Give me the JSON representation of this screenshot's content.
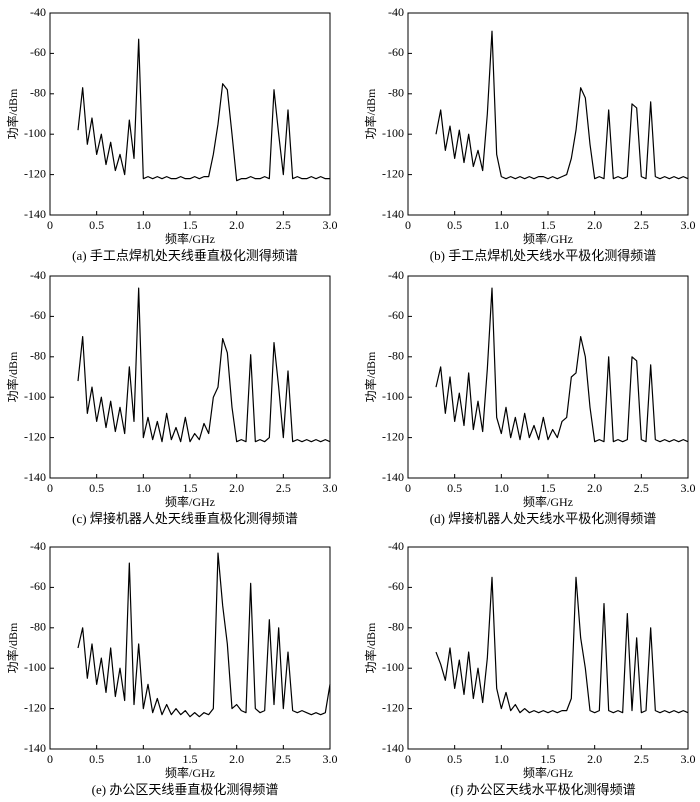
{
  "chart_data": [
    {
      "type": "line",
      "title": "(a) 手工点焊机处天线垂直极化测得频谱",
      "x_label": "频率/GHz",
      "y_label": "功率/dBm",
      "color": "#000000",
      "x": [
        0.3,
        0.35,
        0.4,
        0.45,
        0.5,
        0.55,
        0.6,
        0.65,
        0.7,
        0.75,
        0.8,
        0.85,
        0.9,
        0.95,
        1.0,
        1.05,
        1.1,
        1.15,
        1.2,
        1.25,
        1.3,
        1.35,
        1.4,
        1.45,
        1.5,
        1.55,
        1.6,
        1.65,
        1.7,
        1.75,
        1.8,
        1.85,
        1.9,
        1.95,
        2.0,
        2.05,
        2.1,
        2.15,
        2.2,
        2.25,
        2.3,
        2.35,
        2.4,
        2.45,
        2.5,
        2.55,
        2.6,
        2.65,
        2.7,
        2.75,
        2.8,
        2.85,
        2.9,
        2.95,
        3.0
      ],
      "values": [
        -98,
        -77,
        -105,
        -92,
        -110,
        -100,
        -115,
        -104,
        -118,
        -110,
        -120,
        -93,
        -112,
        -53,
        -122,
        -121,
        -122,
        -121,
        -122,
        -121,
        -122,
        -122,
        -121,
        -122,
        -122,
        -121,
        -122,
        -121,
        -121,
        -110,
        -95,
        -75,
        -78,
        -100,
        -123,
        -122,
        -122,
        -121,
        -122,
        -122,
        -121,
        -122,
        -78,
        -100,
        -120,
        -88,
        -122,
        -121,
        -122,
        -122,
        -121,
        -122,
        -121,
        -122,
        -122
      ],
      "xlim": [
        0,
        3
      ],
      "ylim": [
        -140,
        -40
      ],
      "xticks": [
        0,
        0.5,
        {
          "value": 1,
          "label": "1.0"
        },
        1.5,
        {
          "value": 2,
          "label": "2.0"
        },
        2.5,
        {
          "value": 3,
          "label": "3.0"
        }
      ],
      "yticks": [
        -40,
        -60,
        -80,
        -100,
        -120,
        -140
      ]
    },
    {
      "type": "line",
      "title": "(b) 手工点焊机处天线水平极化测得频谱",
      "x_label": "频率/GHz",
      "y_label": "功率/dBm",
      "color": "#000000",
      "x": [
        0.3,
        0.35,
        0.4,
        0.45,
        0.5,
        0.55,
        0.6,
        0.65,
        0.7,
        0.75,
        0.8,
        0.85,
        0.9,
        0.95,
        1.0,
        1.05,
        1.1,
        1.15,
        1.2,
        1.25,
        1.3,
        1.35,
        1.4,
        1.45,
        1.5,
        1.55,
        1.6,
        1.65,
        1.7,
        1.75,
        1.8,
        1.85,
        1.9,
        1.95,
        2.0,
        2.05,
        2.1,
        2.15,
        2.2,
        2.25,
        2.3,
        2.35,
        2.4,
        2.45,
        2.5,
        2.55,
        2.6,
        2.65,
        2.7,
        2.75,
        2.8,
        2.85,
        2.9,
        2.95,
        3.0
      ],
      "values": [
        -100,
        -88,
        -108,
        -96,
        -112,
        -98,
        -114,
        -100,
        -116,
        -108,
        -118,
        -90,
        -49,
        -110,
        -121,
        -122,
        -121,
        -122,
        -121,
        -122,
        -121,
        -122,
        -121,
        -121,
        -122,
        -121,
        -122,
        -121,
        -120,
        -112,
        -98,
        -77,
        -82,
        -105,
        -122,
        -121,
        -122,
        -88,
        -122,
        -121,
        -122,
        -121,
        -85,
        -87,
        -121,
        -122,
        -84,
        -121,
        -122,
        -121,
        -122,
        -121,
        -122,
        -121,
        -122
      ],
      "xlim": [
        0,
        3
      ],
      "ylim": [
        -140,
        -40
      ],
      "xticks": [
        0,
        0.5,
        {
          "value": 1,
          "label": "1.0"
        },
        1.5,
        {
          "value": 2,
          "label": "2.0"
        },
        2.5,
        {
          "value": 3,
          "label": "3.0"
        }
      ],
      "yticks": [
        -40,
        -60,
        -80,
        -100,
        -120,
        -140
      ]
    },
    {
      "type": "line",
      "title": "(c) 焊接机器人处天线垂直极化测得频谱",
      "x_label": "频率/GHz",
      "y_label": "功率/dBm",
      "color": "#000000",
      "x": [
        0.3,
        0.35,
        0.4,
        0.45,
        0.5,
        0.55,
        0.6,
        0.65,
        0.7,
        0.75,
        0.8,
        0.85,
        0.9,
        0.95,
        1.0,
        1.05,
        1.1,
        1.15,
        1.2,
        1.25,
        1.3,
        1.35,
        1.4,
        1.45,
        1.5,
        1.55,
        1.6,
        1.65,
        1.7,
        1.75,
        1.8,
        1.85,
        1.9,
        1.95,
        2.0,
        2.05,
        2.1,
        2.15,
        2.2,
        2.25,
        2.3,
        2.35,
        2.4,
        2.45,
        2.5,
        2.55,
        2.6,
        2.65,
        2.7,
        2.75,
        2.8,
        2.85,
        2.9,
        2.95,
        3.0
      ],
      "values": [
        -92,
        -70,
        -108,
        -95,
        -112,
        -100,
        -115,
        -102,
        -117,
        -105,
        -118,
        -85,
        -112,
        -46,
        -120,
        -110,
        -121,
        -112,
        -122,
        -108,
        -121,
        -115,
        -122,
        -110,
        -122,
        -118,
        -121,
        -113,
        -118,
        -100,
        -95,
        -71,
        -78,
        -105,
        -122,
        -121,
        -122,
        -79,
        -122,
        -121,
        -122,
        -120,
        -73,
        -95,
        -120,
        -87,
        -122,
        -121,
        -122,
        -121,
        -122,
        -121,
        -122,
        -121,
        -122
      ],
      "xlim": [
        0,
        3
      ],
      "ylim": [
        -140,
        -40
      ],
      "xticks": [
        0,
        0.5,
        {
          "value": 1,
          "label": "1.0"
        },
        1.5,
        {
          "value": 2,
          "label": "2.0"
        },
        2.5,
        {
          "value": 3,
          "label": "3.0"
        }
      ],
      "yticks": [
        -40,
        -60,
        -80,
        -100,
        -120,
        -140
      ]
    },
    {
      "type": "line",
      "title": "(d) 焊接机器人处天线水平极化测得频谱",
      "x_label": "频率/GHz",
      "y_label": "功率/dBm",
      "color": "#000000",
      "x": [
        0.3,
        0.35,
        0.4,
        0.45,
        0.5,
        0.55,
        0.6,
        0.65,
        0.7,
        0.75,
        0.8,
        0.85,
        0.9,
        0.95,
        1.0,
        1.05,
        1.1,
        1.15,
        1.2,
        1.25,
        1.3,
        1.35,
        1.4,
        1.45,
        1.5,
        1.55,
        1.6,
        1.65,
        1.7,
        1.75,
        1.8,
        1.85,
        1.9,
        1.95,
        2.0,
        2.05,
        2.1,
        2.15,
        2.2,
        2.25,
        2.3,
        2.35,
        2.4,
        2.45,
        2.5,
        2.55,
        2.6,
        2.65,
        2.7,
        2.75,
        2.8,
        2.85,
        2.9,
        2.95,
        3.0
      ],
      "values": [
        -95,
        -85,
        -108,
        -90,
        -112,
        -98,
        -114,
        -88,
        -116,
        -102,
        -117,
        -86,
        -46,
        -110,
        -118,
        -105,
        -120,
        -110,
        -121,
        -108,
        -120,
        -114,
        -121,
        -110,
        -121,
        -116,
        -120,
        -112,
        -110,
        -90,
        -88,
        -70,
        -80,
        -105,
        -122,
        -121,
        -122,
        -80,
        -122,
        -121,
        -122,
        -121,
        -80,
        -82,
        -121,
        -122,
        -84,
        -121,
        -122,
        -121,
        -122,
        -121,
        -122,
        -121,
        -122
      ],
      "xlim": [
        0,
        3
      ],
      "ylim": [
        -140,
        -40
      ],
      "xticks": [
        0,
        0.5,
        {
          "value": 1,
          "label": "1.0"
        },
        1.5,
        {
          "value": 2,
          "label": "2.0"
        },
        2.5,
        {
          "value": 3,
          "label": "3.0"
        }
      ],
      "yticks": [
        -40,
        -60,
        -80,
        -100,
        -120,
        -140
      ]
    },
    {
      "type": "line",
      "title": "(e) 办公区天线垂直极化测得频谱",
      "x_label": "频率/GHz",
      "y_label": "功率/dBm",
      "color": "#000000",
      "x": [
        0.3,
        0.35,
        0.4,
        0.45,
        0.5,
        0.55,
        0.6,
        0.65,
        0.7,
        0.75,
        0.8,
        0.85,
        0.9,
        0.95,
        1.0,
        1.05,
        1.1,
        1.15,
        1.2,
        1.25,
        1.3,
        1.35,
        1.4,
        1.45,
        1.5,
        1.55,
        1.6,
        1.65,
        1.7,
        1.75,
        1.8,
        1.85,
        1.9,
        1.95,
        2.0,
        2.05,
        2.1,
        2.15,
        2.2,
        2.25,
        2.3,
        2.35,
        2.4,
        2.45,
        2.5,
        2.55,
        2.6,
        2.65,
        2.7,
        2.75,
        2.8,
        2.85,
        2.9,
        2.95,
        3.0
      ],
      "values": [
        -90,
        -80,
        -105,
        -88,
        -108,
        -95,
        -112,
        -90,
        -114,
        -100,
        -116,
        -48,
        -118,
        -88,
        -120,
        -108,
        -122,
        -115,
        -123,
        -118,
        -123,
        -120,
        -123,
        -121,
        -124,
        -122,
        -124,
        -122,
        -123,
        -120,
        -43,
        -69,
        -88,
        -120,
        -118,
        -121,
        -122,
        -58,
        -120,
        -122,
        -121,
        -76,
        -118,
        -80,
        -120,
        -92,
        -121,
        -122,
        -121,
        -122,
        -123,
        -122,
        -123,
        -122,
        -108
      ],
      "xlim": [
        0,
        3
      ],
      "ylim": [
        -140,
        -40
      ],
      "xticks": [
        0,
        0.5,
        {
          "value": 1,
          "label": "1.0"
        },
        1.5,
        {
          "value": 2,
          "label": "2.0"
        },
        2.5,
        {
          "value": 3,
          "label": "3.0"
        }
      ],
      "yticks": [
        -40,
        -60,
        -80,
        -100,
        -120,
        -140
      ]
    },
    {
      "type": "line",
      "title": "(f) 办公区天线水平极化测得频谱",
      "x_label": "频率/GHz",
      "y_label": "功率/dBm",
      "color": "#000000",
      "x": [
        0.3,
        0.35,
        0.4,
        0.45,
        0.5,
        0.55,
        0.6,
        0.65,
        0.7,
        0.75,
        0.8,
        0.85,
        0.9,
        0.95,
        1.0,
        1.05,
        1.1,
        1.15,
        1.2,
        1.25,
        1.3,
        1.35,
        1.4,
        1.45,
        1.5,
        1.55,
        1.6,
        1.65,
        1.7,
        1.75,
        1.8,
        1.85,
        1.9,
        1.95,
        2.0,
        2.05,
        2.1,
        2.15,
        2.2,
        2.25,
        2.3,
        2.35,
        2.4,
        2.45,
        2.5,
        2.55,
        2.6,
        2.65,
        2.7,
        2.75,
        2.8,
        2.85,
        2.9,
        2.95,
        3.0
      ],
      "values": [
        -92,
        -98,
        -106,
        -90,
        -110,
        -96,
        -113,
        -92,
        -115,
        -100,
        -117,
        -95,
        -55,
        -110,
        -120,
        -112,
        -121,
        -118,
        -122,
        -120,
        -122,
        -121,
        -122,
        -121,
        -122,
        -121,
        -122,
        -121,
        -121,
        -115,
        -55,
        -85,
        -100,
        -121,
        -122,
        -121,
        -68,
        -121,
        -122,
        -121,
        -122,
        -73,
        -121,
        -85,
        -122,
        -121,
        -80,
        -121,
        -122,
        -121,
        -122,
        -121,
        -122,
        -121,
        -122
      ],
      "xlim": [
        0,
        3
      ],
      "ylim": [
        -140,
        -40
      ],
      "xticks": [
        0,
        0.5,
        {
          "value": 1,
          "label": "1.0"
        },
        1.5,
        {
          "value": 2,
          "label": "2.0"
        },
        2.5,
        {
          "value": 3,
          "label": "3.0"
        }
      ],
      "yticks": [
        -40,
        -60,
        -80,
        -100,
        -120,
        -140
      ]
    }
  ]
}
